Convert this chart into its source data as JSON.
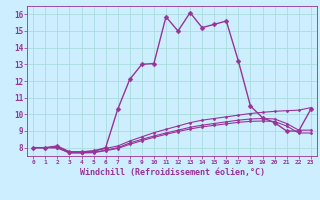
{
  "title": "",
  "xlabel": "Windchill (Refroidissement éolien,°C)",
  "background_color": "#cceeff",
  "grid_color": "#aadddd",
  "line_color": "#993399",
  "xlim": [
    -0.5,
    23.5
  ],
  "ylim": [
    7.5,
    16.5
  ],
  "xticks": [
    0,
    1,
    2,
    3,
    4,
    5,
    6,
    7,
    8,
    9,
    10,
    11,
    12,
    13,
    14,
    15,
    16,
    17,
    18,
    19,
    20,
    21,
    22,
    23
  ],
  "yticks": [
    8,
    9,
    10,
    11,
    12,
    13,
    14,
    15,
    16
  ],
  "curves": [
    {
      "x": [
        0,
        1,
        2,
        3,
        4,
        5,
        6,
        7,
        8,
        9,
        10,
        11,
        12,
        13,
        14,
        15,
        16,
        17,
        18,
        19,
        20,
        21,
        22,
        23
      ],
      "y": [
        8.0,
        8.0,
        8.1,
        7.75,
        7.75,
        7.8,
        8.0,
        10.3,
        12.1,
        13.0,
        13.05,
        15.85,
        15.0,
        16.1,
        15.2,
        15.4,
        15.6,
        13.2,
        10.5,
        9.8,
        9.5,
        9.0,
        9.0,
        10.3
      ],
      "linewidth": 1.0,
      "markersize": 2.5
    },
    {
      "x": [
        0,
        1,
        2,
        3,
        4,
        5,
        6,
        7,
        8,
        9,
        10,
        11,
        12,
        13,
        14,
        15,
        16,
        17,
        18,
        19,
        20,
        21,
        22,
        23
      ],
      "y": [
        8.0,
        8.0,
        8.05,
        7.75,
        7.75,
        7.8,
        7.95,
        8.1,
        8.4,
        8.65,
        8.9,
        9.1,
        9.3,
        9.5,
        9.65,
        9.75,
        9.85,
        9.95,
        10.05,
        10.12,
        10.18,
        10.22,
        10.25,
        10.4
      ],
      "linewidth": 0.8,
      "markersize": 1.5
    },
    {
      "x": [
        0,
        1,
        2,
        3,
        4,
        5,
        6,
        7,
        8,
        9,
        10,
        11,
        12,
        13,
        14,
        15,
        16,
        17,
        18,
        19,
        20,
        21,
        22,
        23
      ],
      "y": [
        8.0,
        8.0,
        8.0,
        7.7,
        7.7,
        7.72,
        7.85,
        8.0,
        8.28,
        8.5,
        8.7,
        8.88,
        9.05,
        9.22,
        9.35,
        9.45,
        9.55,
        9.65,
        9.72,
        9.75,
        9.72,
        9.45,
        9.05,
        9.05
      ],
      "linewidth": 0.8,
      "markersize": 1.5
    },
    {
      "x": [
        0,
        1,
        2,
        3,
        4,
        5,
        6,
        7,
        8,
        9,
        10,
        11,
        12,
        13,
        14,
        15,
        16,
        17,
        18,
        19,
        20,
        21,
        22,
        23
      ],
      "y": [
        8.0,
        8.0,
        7.98,
        7.68,
        7.68,
        7.7,
        7.82,
        7.95,
        8.2,
        8.42,
        8.62,
        8.8,
        8.97,
        9.12,
        9.25,
        9.34,
        9.43,
        9.52,
        9.58,
        9.6,
        9.57,
        9.3,
        8.88,
        8.88
      ],
      "linewidth": 0.8,
      "markersize": 1.5
    }
  ]
}
